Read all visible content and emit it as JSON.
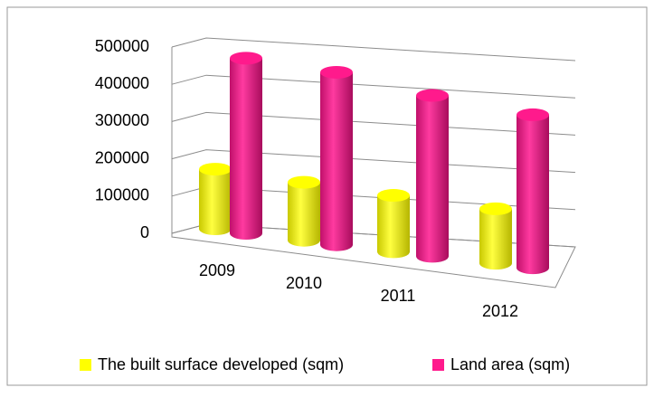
{
  "chart_data": {
    "type": "bar3d",
    "categories": [
      "2009",
      "2010",
      "2011",
      "2012"
    ],
    "series": [
      {
        "name": "The built surface developed (sqm)",
        "color": "#ffff00",
        "values": [
          160000,
          158000,
          156000,
          153000
        ]
      },
      {
        "name": "Land area (sqm)",
        "color": "#ff1a8c",
        "values": [
          470000,
          470000,
          445000,
          430000
        ]
      }
    ],
    "ylim": [
      0,
      500000
    ],
    "yticks": [
      0,
      100000,
      200000,
      300000,
      400000,
      500000
    ],
    "grid": true,
    "legend": "bottom"
  }
}
